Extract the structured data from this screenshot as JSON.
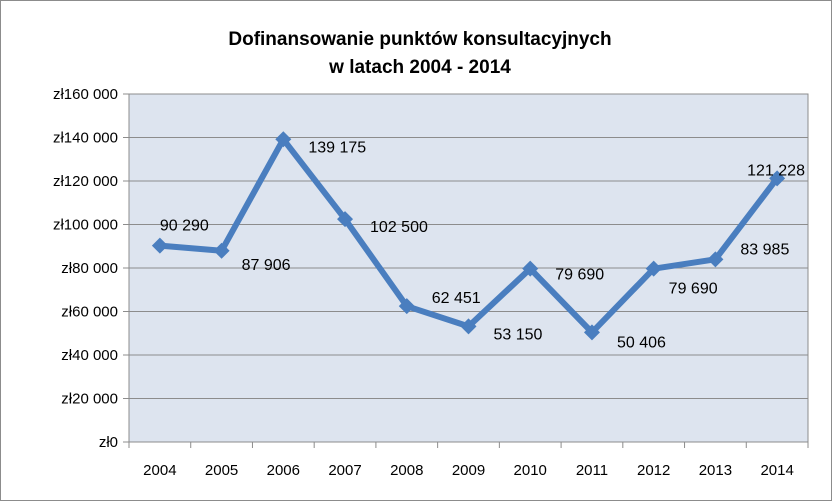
{
  "chart_data": {
    "type": "line",
    "title_line1": "Dofinansowanie punktów konsultacyjnych",
    "title_line2": "w latach 2004 - 2014",
    "categories": [
      "2004",
      "2005",
      "2006",
      "2007",
      "2008",
      "2009",
      "2010",
      "2011",
      "2012",
      "2013",
      "2014"
    ],
    "values": [
      90290,
      87906,
      139175,
      102500,
      62451,
      53150,
      79690,
      50406,
      79690,
      83985,
      121228
    ],
    "data_labels": [
      "90 290",
      "87 906",
      "139 175",
      "102 500",
      "62 451",
      "53 150",
      "79 690",
      "50 406",
      "79 690",
      "83 985",
      "121 228"
    ],
    "y_ticks": [
      0,
      20000,
      40000,
      60000,
      80000,
      100000,
      120000,
      140000,
      160000
    ],
    "y_tick_labels": [
      "zł0",
      "zł20 000",
      "zł40 000",
      "zł60 000",
      "zł80 000",
      "zł100 000",
      "zł120 000",
      "zł140 000",
      "zł160 000"
    ],
    "ylim": [
      0,
      160000
    ],
    "grid": true,
    "legend": "none",
    "series_color": "#4a7ebf",
    "plot_background": "#dde4ef",
    "grid_color": "#8c8c8c"
  }
}
